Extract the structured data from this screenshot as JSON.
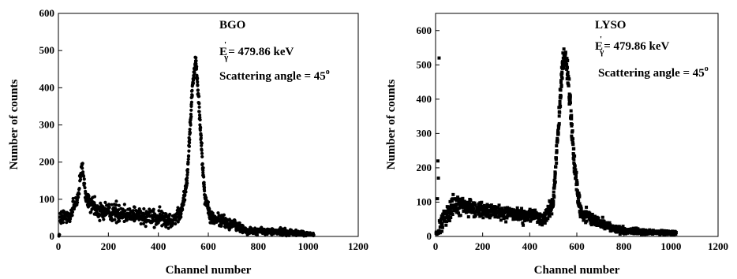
{
  "chart_data": [
    {
      "type": "scatter",
      "xlabel": "Channel number",
      "ylabel": "Number of counts",
      "xlim": [
        0,
        1200
      ],
      "ylim": [
        0,
        600
      ],
      "xticks": [
        "0",
        "200",
        "400",
        "600",
        "800",
        "1000",
        "1200"
      ],
      "yticks": [
        "0",
        "100",
        "200",
        "300",
        "400",
        "500",
        "600"
      ],
      "grid": false,
      "marker": "circle",
      "color": "#000000",
      "annotations": {
        "crystal": "BGO",
        "energy_symbol": "E",
        "energy_prime": "'",
        "energy_sub": "γ",
        "energy_value": "= 479.86 keV",
        "angle_text": "Scattering angle = 45",
        "angle_sup": "o"
      },
      "features": [
        {
          "x": 5,
          "y": 45,
          "spread": 25
        },
        {
          "x": 50,
          "y": 60,
          "spread": 30
        },
        {
          "x": 80,
          "y": 110,
          "spread": 20
        },
        {
          "x": 95,
          "y": 195,
          "spread": 15
        },
        {
          "x": 110,
          "y": 100,
          "spread": 20
        },
        {
          "x": 150,
          "y": 70,
          "spread": 25
        },
        {
          "x": 300,
          "y": 60,
          "spread": 22
        },
        {
          "x": 450,
          "y": 45,
          "spread": 20
        },
        {
          "x": 490,
          "y": 60,
          "spread": 15
        },
        {
          "x": 515,
          "y": 150,
          "spread": 15
        },
        {
          "x": 535,
          "y": 390,
          "spread": 20
        },
        {
          "x": 550,
          "y": 480,
          "spread": 10
        },
        {
          "x": 565,
          "y": 330,
          "spread": 20
        },
        {
          "x": 585,
          "y": 110,
          "spread": 15
        },
        {
          "x": 610,
          "y": 50,
          "spread": 15
        },
        {
          "x": 700,
          "y": 32,
          "spread": 15
        },
        {
          "x": 760,
          "y": 15,
          "spread": 8
        },
        {
          "x": 900,
          "y": 12,
          "spread": 8
        },
        {
          "x": 1020,
          "y": 5,
          "spread": 4
        }
      ]
    },
    {
      "type": "scatter",
      "xlabel": "Channel number",
      "ylabel": "Number of counts",
      "xlim": [
        0,
        1200
      ],
      "ylim": [
        0,
        650
      ],
      "xticks": [
        "0",
        "200",
        "400",
        "600",
        "800",
        "1000",
        "1200"
      ],
      "yticks": [
        "0",
        "100",
        "200",
        "300",
        "400",
        "500",
        "600"
      ],
      "grid": false,
      "marker": "square",
      "color": "#000000",
      "annotations": {
        "crystal": "LYSO",
        "energy_symbol": "E",
        "energy_prime": "'",
        "energy_sub": "γ",
        "energy_value": "= 479.86 keV",
        "angle_text": "Scattering angle = 45",
        "angle_sup": "o"
      },
      "outliers": [
        {
          "x": 15,
          "y": 520
        },
        {
          "x": 10,
          "y": 220
        },
        {
          "x": 12,
          "y": 170
        },
        {
          "x": 8,
          "y": 110
        }
      ],
      "features": [
        {
          "x": 15,
          "y": 20,
          "spread": 20
        },
        {
          "x": 40,
          "y": 65,
          "spread": 25
        },
        {
          "x": 80,
          "y": 90,
          "spread": 30
        },
        {
          "x": 200,
          "y": 75,
          "spread": 20
        },
        {
          "x": 350,
          "y": 65,
          "spread": 20
        },
        {
          "x": 460,
          "y": 50,
          "spread": 20
        },
        {
          "x": 500,
          "y": 100,
          "spread": 20
        },
        {
          "x": 520,
          "y": 300,
          "spread": 30
        },
        {
          "x": 540,
          "y": 510,
          "spread": 25
        },
        {
          "x": 555,
          "y": 520,
          "spread": 30
        },
        {
          "x": 570,
          "y": 400,
          "spread": 30
        },
        {
          "x": 590,
          "y": 200,
          "spread": 25
        },
        {
          "x": 615,
          "y": 70,
          "spread": 20
        },
        {
          "x": 700,
          "y": 40,
          "spread": 15
        },
        {
          "x": 760,
          "y": 20,
          "spread": 10
        },
        {
          "x": 900,
          "y": 12,
          "spread": 6
        },
        {
          "x": 1020,
          "y": 10,
          "spread": 5
        }
      ]
    }
  ]
}
